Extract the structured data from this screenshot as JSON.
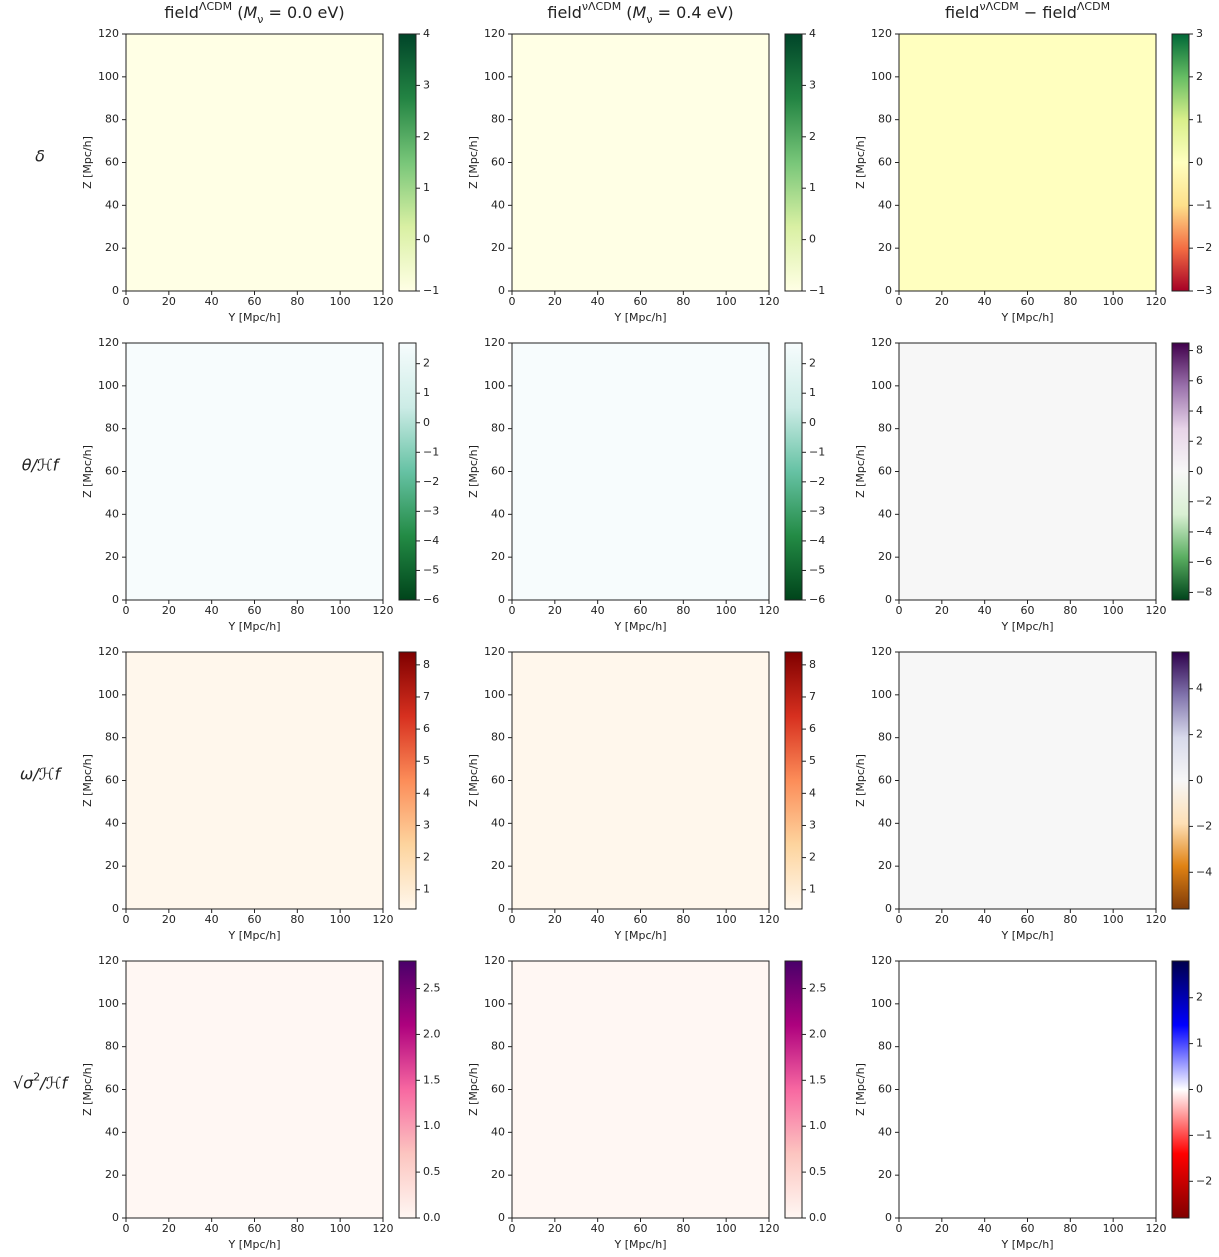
{
  "chart_data": [
    {
      "type": "heatmap",
      "title": [
        {
          "text": "field"
        },
        {
          "text": "ΛCDM",
          "style": "sup"
        },
        {
          "text": " ("
        },
        {
          "text": "M",
          "style": "italic"
        },
        {
          "text": "ν",
          "style": "sub"
        },
        {
          "text": " = 0.0 eV)"
        }
      ],
      "row_label": [
        {
          "text": "δ",
          "style": "italic"
        }
      ],
      "xlabel": "Y [Mpc/h]",
      "ylabel": "Z [Mpc/h]",
      "xlim": [
        0,
        120
      ],
      "ylim": [
        0,
        120
      ],
      "xticks": [
        0,
        20,
        40,
        60,
        80,
        100,
        120
      ],
      "yticks": [
        0,
        20,
        40,
        60,
        80,
        100,
        120
      ],
      "colorbar": {
        "lim": [
          -1,
          4
        ],
        "ticks": [
          {
            "value": -1,
            "label": "−1"
          },
          0,
          1,
          2,
          3,
          4
        ],
        "colors": [
          "#ffffe5",
          "#d9f0a3",
          "#78c679",
          "#238443",
          "#004529"
        ]
      }
    },
    {
      "type": "heatmap",
      "title": [
        {
          "text": "field"
        },
        {
          "text": "νΛCDM",
          "style": "sup"
        },
        {
          "text": " ("
        },
        {
          "text": "M",
          "style": "italic"
        },
        {
          "text": "ν",
          "style": "sub"
        },
        {
          "text": " = 0.4 eV)"
        }
      ],
      "xlabel": "Y [Mpc/h]",
      "ylabel": "Z [Mpc/h]",
      "xlim": [
        0,
        120
      ],
      "ylim": [
        0,
        120
      ],
      "xticks": [
        0,
        20,
        40,
        60,
        80,
        100,
        120
      ],
      "yticks": [
        0,
        20,
        40,
        60,
        80,
        100,
        120
      ],
      "colorbar": {
        "lim": [
          -1,
          4
        ],
        "ticks": [
          {
            "value": -1,
            "label": "−1"
          },
          0,
          1,
          2,
          3,
          4
        ],
        "colors": [
          "#ffffe5",
          "#d9f0a3",
          "#78c679",
          "#238443",
          "#004529"
        ]
      }
    },
    {
      "type": "heatmap",
      "title": [
        {
          "text": "field"
        },
        {
          "text": "νΛCDM",
          "style": "sup"
        },
        {
          "text": " − field"
        },
        {
          "text": "ΛCDM",
          "style": "sup"
        }
      ],
      "xlabel": "Y [Mpc/h]",
      "ylabel": "Z [Mpc/h]",
      "xlim": [
        0,
        120
      ],
      "ylim": [
        0,
        120
      ],
      "xticks": [
        0,
        20,
        40,
        60,
        80,
        100,
        120
      ],
      "yticks": [
        0,
        20,
        40,
        60,
        80,
        100,
        120
      ],
      "colorbar": {
        "lim": [
          -3,
          3
        ],
        "ticks": [
          {
            "value": -3,
            "label": "−3"
          },
          {
            "value": -2,
            "label": "−2"
          },
          {
            "value": -1,
            "label": "−1"
          },
          0,
          1,
          2,
          3
        ],
        "colors": [
          "#a50026",
          "#f46d43",
          "#fee08b",
          "#ffffbf",
          "#d9ef8b",
          "#66bd63",
          "#006837"
        ]
      }
    },
    {
      "type": "heatmap",
      "row_label": [
        {
          "text": "θ/ℋf",
          "style": "italic"
        }
      ],
      "xlabel": "Y [Mpc/h]",
      "ylabel": "Z [Mpc/h]",
      "xlim": [
        0,
        120
      ],
      "ylim": [
        0,
        120
      ],
      "xticks": [
        0,
        20,
        40,
        60,
        80,
        100,
        120
      ],
      "yticks": [
        0,
        20,
        40,
        60,
        80,
        100,
        120
      ],
      "colorbar": {
        "lim": [
          -6,
          2.7
        ],
        "ticks": [
          {
            "value": -6,
            "label": "−6"
          },
          {
            "value": -5,
            "label": "−5"
          },
          {
            "value": -4,
            "label": "−4"
          },
          {
            "value": -3,
            "label": "−3"
          },
          {
            "value": -2,
            "label": "−2"
          },
          {
            "value": -1,
            "label": "−1"
          },
          0,
          1,
          2
        ],
        "colors": [
          "#00441b",
          "#238b45",
          "#66c2a4",
          "#ccece6",
          "#f7fcfd"
        ]
      }
    },
    {
      "type": "heatmap",
      "xlabel": "Y [Mpc/h]",
      "ylabel": "Z [Mpc/h]",
      "xlim": [
        0,
        120
      ],
      "ylim": [
        0,
        120
      ],
      "xticks": [
        0,
        20,
        40,
        60,
        80,
        100,
        120
      ],
      "yticks": [
        0,
        20,
        40,
        60,
        80,
        100,
        120
      ],
      "colorbar": {
        "lim": [
          -6,
          2.7
        ],
        "ticks": [
          {
            "value": -6,
            "label": "−6"
          },
          {
            "value": -5,
            "label": "−5"
          },
          {
            "value": -4,
            "label": "−4"
          },
          {
            "value": -3,
            "label": "−3"
          },
          {
            "value": -2,
            "label": "−2"
          },
          {
            "value": -1,
            "label": "−1"
          },
          0,
          1,
          2
        ],
        "colors": [
          "#00441b",
          "#238b45",
          "#66c2a4",
          "#ccece6",
          "#f7fcfd"
        ]
      }
    },
    {
      "type": "heatmap",
      "xlabel": "Y [Mpc/h]",
      "ylabel": "Z [Mpc/h]",
      "xlim": [
        0,
        120
      ],
      "ylim": [
        0,
        120
      ],
      "xticks": [
        0,
        20,
        40,
        60,
        80,
        100,
        120
      ],
      "yticks": [
        0,
        20,
        40,
        60,
        80,
        100,
        120
      ],
      "colorbar": {
        "lim": [
          -8.5,
          8.5
        ],
        "ticks": [
          {
            "value": -8,
            "label": "−8"
          },
          {
            "value": -6,
            "label": "−6"
          },
          {
            "value": -4,
            "label": "−4"
          },
          {
            "value": -2,
            "label": "−2"
          },
          0,
          2,
          4,
          6,
          8
        ],
        "colors": [
          "#00441b",
          "#5aae61",
          "#d9f0d3",
          "#f7f7f7",
          "#e7d4e8",
          "#9970ab",
          "#40004b"
        ]
      }
    },
    {
      "type": "heatmap",
      "row_label": [
        {
          "text": "ω/ℋf",
          "style": "italic"
        }
      ],
      "xlabel": "Y [Mpc/h]",
      "ylabel": "Z [Mpc/h]",
      "xlim": [
        0,
        120
      ],
      "ylim": [
        0,
        120
      ],
      "xticks": [
        0,
        20,
        40,
        60,
        80,
        100,
        120
      ],
      "yticks": [
        0,
        20,
        40,
        60,
        80,
        100,
        120
      ],
      "colorbar": {
        "lim": [
          0.4,
          8.4
        ],
        "ticks": [
          1,
          2,
          3,
          4,
          5,
          6,
          7,
          8
        ],
        "colors": [
          "#fff7ec",
          "#fdd49e",
          "#fc8d59",
          "#d7301f",
          "#7f0000"
        ]
      }
    },
    {
      "type": "heatmap",
      "xlabel": "Y [Mpc/h]",
      "ylabel": "Z [Mpc/h]",
      "xlim": [
        0,
        120
      ],
      "ylim": [
        0,
        120
      ],
      "xticks": [
        0,
        20,
        40,
        60,
        80,
        100,
        120
      ],
      "yticks": [
        0,
        20,
        40,
        60,
        80,
        100,
        120
      ],
      "colorbar": {
        "lim": [
          0.4,
          8.4
        ],
        "ticks": [
          1,
          2,
          3,
          4,
          5,
          6,
          7,
          8
        ],
        "colors": [
          "#fff7ec",
          "#fdd49e",
          "#fc8d59",
          "#d7301f",
          "#7f0000"
        ]
      }
    },
    {
      "type": "heatmap",
      "xlabel": "Y [Mpc/h]",
      "ylabel": "Z [Mpc/h]",
      "xlim": [
        0,
        120
      ],
      "ylim": [
        0,
        120
      ],
      "xticks": [
        0,
        20,
        40,
        60,
        80,
        100,
        120
      ],
      "yticks": [
        0,
        20,
        40,
        60,
        80,
        100,
        120
      ],
      "colorbar": {
        "lim": [
          -5.6,
          5.6
        ],
        "ticks": [
          {
            "value": -4,
            "label": "−4"
          },
          {
            "value": -2,
            "label": "−2"
          },
          0,
          2,
          4
        ],
        "colors": [
          "#7f3b08",
          "#e08214",
          "#fee0b6",
          "#f7f7f7",
          "#d8daeb",
          "#8073ac",
          "#2d004b"
        ]
      }
    },
    {
      "type": "heatmap",
      "row_label": [
        {
          "text": "√"
        },
        {
          "text": "σ",
          "style": "italic"
        },
        {
          "text": "2",
          "style": "sup"
        },
        {
          "text": "/ℋf",
          "style": "italic"
        }
      ],
      "xlabel": "Y [Mpc/h]",
      "ylabel": "Z [Mpc/h]",
      "xlim": [
        0,
        120
      ],
      "ylim": [
        0,
        120
      ],
      "xticks": [
        0,
        20,
        40,
        60,
        80,
        100,
        120
      ],
      "yticks": [
        0,
        20,
        40,
        60,
        80,
        100,
        120
      ],
      "colorbar": {
        "lim": [
          0,
          2.8
        ],
        "ticks": [
          {
            "value": 0,
            "label": "0.0"
          },
          0.5,
          {
            "value": 1,
            "label": "1.0"
          },
          1.5,
          {
            "value": 2,
            "label": "2.0"
          },
          2.5
        ],
        "colors": [
          "#fff7f3",
          "#fcc5c0",
          "#f768a1",
          "#ae017e",
          "#49006a"
        ]
      }
    },
    {
      "type": "heatmap",
      "xlabel": "Y [Mpc/h]",
      "ylabel": "Z [Mpc/h]",
      "xlim": [
        0,
        120
      ],
      "ylim": [
        0,
        120
      ],
      "xticks": [
        0,
        20,
        40,
        60,
        80,
        100,
        120
      ],
      "yticks": [
        0,
        20,
        40,
        60,
        80,
        100,
        120
      ],
      "colorbar": {
        "lim": [
          0,
          2.8
        ],
        "ticks": [
          {
            "value": 0,
            "label": "0.0"
          },
          0.5,
          {
            "value": 1,
            "label": "1.0"
          },
          1.5,
          {
            "value": 2,
            "label": "2.0"
          },
          2.5
        ],
        "colors": [
          "#fff7f3",
          "#fcc5c0",
          "#f768a1",
          "#ae017e",
          "#49006a"
        ]
      }
    },
    {
      "type": "heatmap",
      "xlabel": "Y [Mpc/h]",
      "ylabel": "Z [Mpc/h]",
      "xlim": [
        0,
        120
      ],
      "ylim": [
        0,
        120
      ],
      "xticks": [
        0,
        20,
        40,
        60,
        80,
        100,
        120
      ],
      "yticks": [
        0,
        20,
        40,
        60,
        80,
        100,
        120
      ],
      "colorbar": {
        "lim": [
          -2.8,
          2.8
        ],
        "ticks": [
          {
            "value": -2,
            "label": "−2"
          },
          {
            "value": -1,
            "label": "−1"
          },
          0,
          1,
          2
        ],
        "colors": [
          "#800000",
          "#ff0000",
          "#ffffff",
          "#0000ff",
          "#00004c"
        ]
      }
    }
  ]
}
